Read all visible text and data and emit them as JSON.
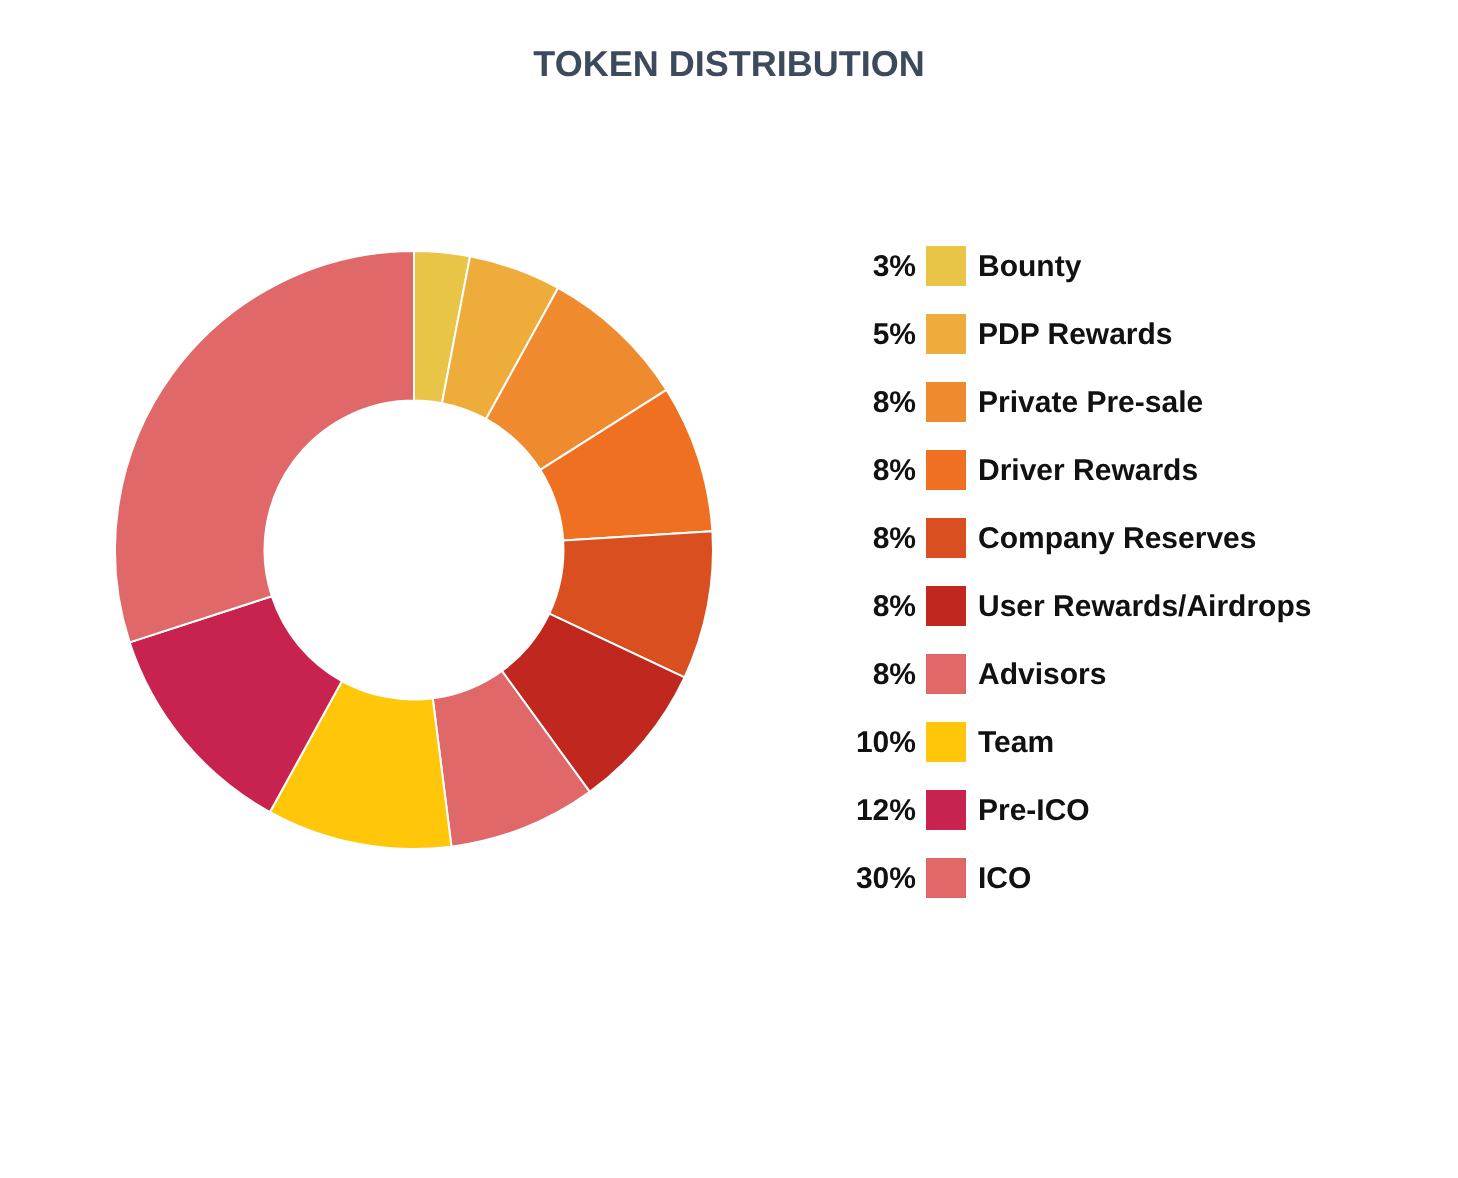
{
  "chart_data": {
    "type": "donut",
    "title": "TOKEN DISTRIBUTION",
    "categories": [
      "Bounty",
      "PDP Rewards",
      "Private Pre-sale",
      "Driver Rewards",
      "Company Reserves",
      "User Rewards/Airdrops",
      "Advisors",
      "Team",
      "Pre-ICO",
      "ICO"
    ],
    "values": [
      3,
      5,
      8,
      8,
      8,
      8,
      8,
      10,
      12,
      30
    ],
    "value_labels": [
      "3%",
      "5%",
      "8%",
      "8%",
      "8%",
      "8%",
      "8%",
      "10%",
      "12%",
      "30%"
    ],
    "colors": [
      "#e8c547",
      "#eeac3a",
      "#f08a2e",
      "#f07022",
      "#d94f1f",
      "#c0281f",
      "#e06868",
      "#ffc60a",
      "#c8234e",
      "#e06868"
    ],
    "legend": "right"
  }
}
